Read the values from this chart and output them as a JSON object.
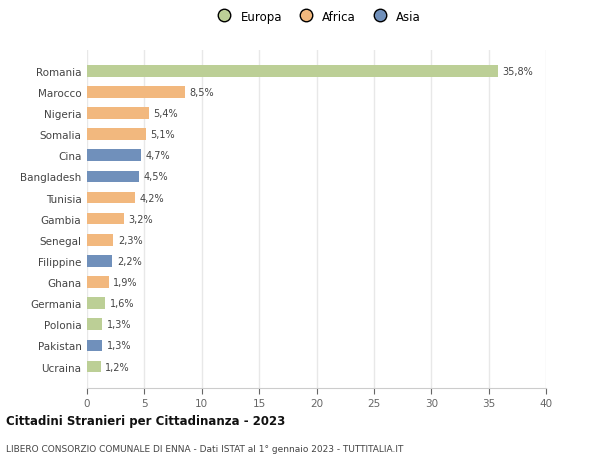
{
  "categories": [
    "Romania",
    "Marocco",
    "Nigeria",
    "Somalia",
    "Cina",
    "Bangladesh",
    "Tunisia",
    "Gambia",
    "Senegal",
    "Filippine",
    "Ghana",
    "Germania",
    "Polonia",
    "Pakistan",
    "Ucraina"
  ],
  "values": [
    35.8,
    8.5,
    5.4,
    5.1,
    4.7,
    4.5,
    4.2,
    3.2,
    2.3,
    2.2,
    1.9,
    1.6,
    1.3,
    1.3,
    1.2
  ],
  "labels": [
    "35,8%",
    "8,5%",
    "5,4%",
    "5,1%",
    "4,7%",
    "4,5%",
    "4,2%",
    "3,2%",
    "2,3%",
    "2,2%",
    "1,9%",
    "1,6%",
    "1,3%",
    "1,3%",
    "1,2%"
  ],
  "continents": [
    "Europa",
    "Africa",
    "Africa",
    "Africa",
    "Asia",
    "Asia",
    "Africa",
    "Africa",
    "Africa",
    "Asia",
    "Africa",
    "Europa",
    "Europa",
    "Asia",
    "Europa"
  ],
  "colors": {
    "Europa": "#bccf96",
    "Africa": "#f2b87e",
    "Asia": "#7090bb"
  },
  "title": "Cittadini Stranieri per Cittadinanza - 2023",
  "subtitle": "LIBERO CONSORZIO COMUNALE DI ENNA - Dati ISTAT al 1° gennaio 2023 - TUTTITALIA.IT",
  "xlim": [
    0,
    40
  ],
  "xticks": [
    0,
    5,
    10,
    15,
    20,
    25,
    30,
    35,
    40
  ],
  "background_color": "#ffffff",
  "grid_color": "#e8e8e8"
}
